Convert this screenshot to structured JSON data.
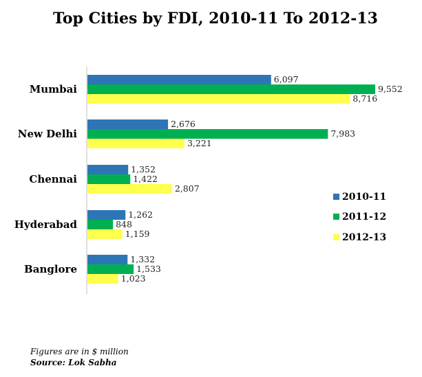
{
  "chart_data": {
    "type": "bar",
    "orientation": "horizontal",
    "title": "Top Cities by FDI, 2010-11 To 2012-13",
    "categories": [
      "Mumbai",
      "New Delhi",
      "Chennai",
      "Hyderabad",
      "Banglore"
    ],
    "series": [
      {
        "name": "2010-11",
        "color": "#2e75b6",
        "values": [
          6097,
          2676,
          1352,
          1262,
          1332
        ],
        "labels": [
          "6,097",
          "2,676",
          "1,352",
          "1,262",
          "1,332"
        ]
      },
      {
        "name": "2011-12",
        "color": "#00b050",
        "values": [
          9552,
          7983,
          1422,
          848,
          1533
        ],
        "labels": [
          "9,552",
          "7,983",
          "1,422",
          "848",
          "1,533"
        ]
      },
      {
        "name": "2012-13",
        "color": "#ffff4d",
        "values": [
          8716,
          3221,
          2807,
          1159,
          1023
        ],
        "labels": [
          "8,716",
          "3,221",
          "2,807",
          "1,159",
          "1,023"
        ]
      }
    ],
    "xlim": [
      0,
      9552
    ],
    "grid": false,
    "legend_position": "right"
  },
  "notes": {
    "units": "Figures are in $ million",
    "source": "Source: Lok Sabha"
  }
}
